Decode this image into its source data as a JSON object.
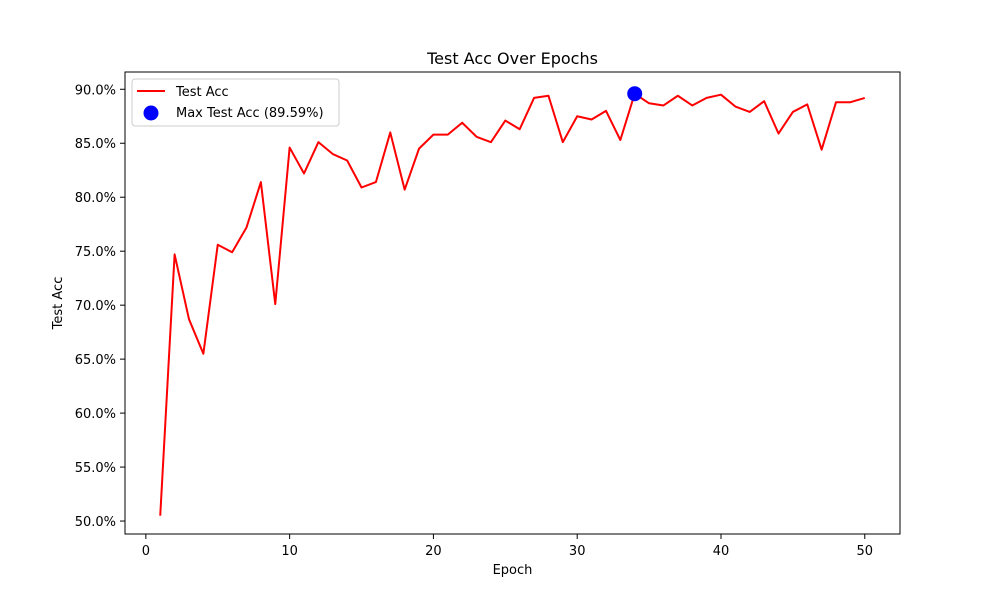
{
  "colors": {
    "line": "#ff0000",
    "marker": "#0000ff",
    "axes": "#000000",
    "background": "#ffffff",
    "legend_border": "#cccccc"
  },
  "chart_data": {
    "type": "line",
    "title": "Test Acc Over Epochs",
    "xlabel": "Epoch",
    "ylabel": "Test Acc",
    "xlim": [
      -1.45,
      52.45
    ],
    "ylim": [
      48.8,
      91.6
    ],
    "x_ticks": [
      0,
      10,
      20,
      30,
      40,
      50
    ],
    "x_tick_labels": [
      "0",
      "10",
      "20",
      "30",
      "40",
      "50"
    ],
    "y_ticks": [
      50,
      55,
      60,
      65,
      70,
      75,
      80,
      85,
      90
    ],
    "y_tick_labels": [
      "50.0%",
      "55.0%",
      "60.0%",
      "65.0%",
      "70.0%",
      "75.0%",
      "80.0%",
      "85.0%",
      "90.0%"
    ],
    "grid": false,
    "legend_position": "top-left",
    "series": [
      {
        "name": "Test Acc",
        "color": "#ff0000",
        "x": [
          1,
          2,
          3,
          4,
          5,
          6,
          7,
          8,
          9,
          10,
          11,
          12,
          13,
          14,
          15,
          16,
          17,
          18,
          19,
          20,
          21,
          22,
          23,
          24,
          25,
          26,
          27,
          28,
          29,
          30,
          31,
          32,
          33,
          34,
          35,
          36,
          37,
          38,
          39,
          40,
          41,
          42,
          43,
          44,
          45,
          46,
          47,
          48,
          49,
          50
        ],
        "y": [
          50.5,
          74.7,
          68.7,
          65.5,
          75.6,
          74.9,
          77.2,
          81.4,
          70.1,
          84.6,
          82.2,
          85.1,
          84.0,
          83.4,
          80.9,
          81.4,
          86.0,
          80.7,
          84.5,
          85.8,
          85.8,
          86.9,
          85.6,
          85.1,
          87.1,
          86.3,
          89.2,
          89.4,
          85.1,
          87.5,
          87.2,
          88.0,
          85.3,
          89.59,
          88.7,
          88.5,
          89.4,
          88.5,
          89.2,
          89.5,
          88.4,
          87.9,
          88.9,
          85.9,
          87.9,
          88.6,
          84.4,
          88.8,
          88.8,
          89.2
        ]
      },
      {
        "name": "Max Test Acc (89.59%)",
        "type": "scatter",
        "color": "#0000ff",
        "x": [
          34
        ],
        "y": [
          89.59
        ]
      }
    ],
    "legend": [
      "Test Acc",
      "Max Test Acc (89.59%)"
    ]
  }
}
